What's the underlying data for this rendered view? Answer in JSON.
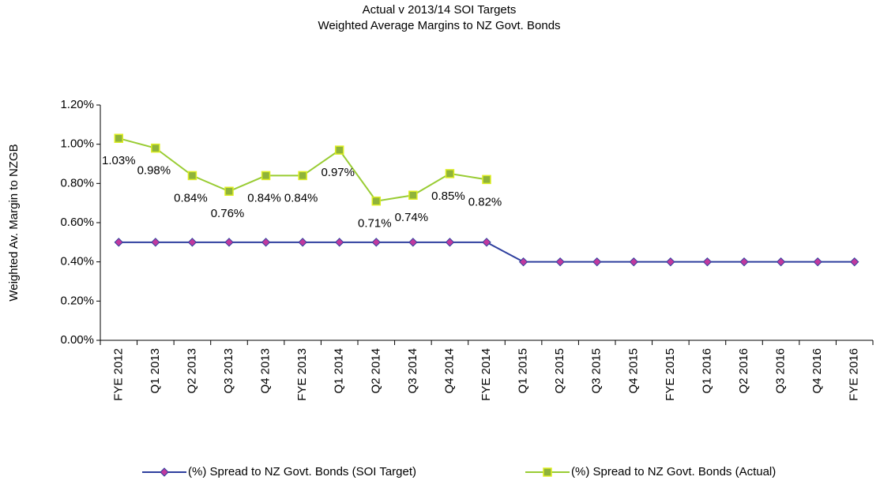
{
  "chart_data": {
    "type": "line",
    "title": "Actual v 2013/14 SOI Targets",
    "subtitle": "Weighted Average Margins to NZ Govt. Bonds",
    "y_label": "Weighted Av. Margin to NZGB",
    "categories": [
      "FYE 2012",
      "Q1 2013",
      "Q2 2013",
      "Q3 2013",
      "Q4 2013",
      "FYE 2013",
      "Q1 2014",
      "Q2 2014",
      "Q3 2014",
      "Q4 2014",
      "FYE 2014",
      "Q1 2015",
      "Q2 2015",
      "Q3 2015",
      "Q4 2015",
      "FYE 2015",
      "Q1 2016",
      "Q2 2016",
      "Q3 2016",
      "Q4 2016",
      "FYE 2016"
    ],
    "series": [
      {
        "name": "(%) Spread to NZ Govt. Bonds (SOI Target)",
        "color": "#2e3f9e",
        "marker": "diamond",
        "marker_color": "#c0399e",
        "values": [
          0.5,
          0.5,
          0.5,
          0.5,
          0.5,
          0.5,
          0.5,
          0.5,
          0.5,
          0.5,
          0.5,
          0.4,
          0.4,
          0.4,
          0.4,
          0.4,
          0.4,
          0.4,
          0.4,
          0.4,
          0.4
        ]
      },
      {
        "name": "(%) Spread to NZ Govt. Bonds (Actual)",
        "color": "#99cc33",
        "marker": "square",
        "marker_color": "#8fb33a",
        "values": [
          1.03,
          0.98,
          0.84,
          0.76,
          0.84,
          0.84,
          0.97,
          0.71,
          0.74,
          0.85,
          0.82,
          null,
          null,
          null,
          null,
          null,
          null,
          null,
          null,
          null,
          null
        ],
        "value_labels": [
          "1.03%",
          "0.98%",
          "0.84%",
          "0.76%",
          "0.84%",
          "0.84%",
          "0.97%",
          "0.71%",
          "0.74%",
          "0.85%",
          "0.82%",
          null,
          null,
          null,
          null,
          null,
          null,
          null,
          null,
          null,
          null
        ]
      }
    ],
    "ylim": [
      0,
      1.2
    ],
    "yticks": [
      {
        "value": 0,
        "label": "0.00%"
      },
      {
        "value": 0.2,
        "label": "0.20%"
      },
      {
        "value": 0.4,
        "label": "0.40%"
      },
      {
        "value": 0.6,
        "label": "0.60%"
      },
      {
        "value": 0.8,
        "label": "0.80%"
      },
      {
        "value": 1.0,
        "label": "1.00%"
      },
      {
        "value": 1.2,
        "label": "1.20%"
      }
    ],
    "grid": false,
    "legend": "bottom"
  }
}
